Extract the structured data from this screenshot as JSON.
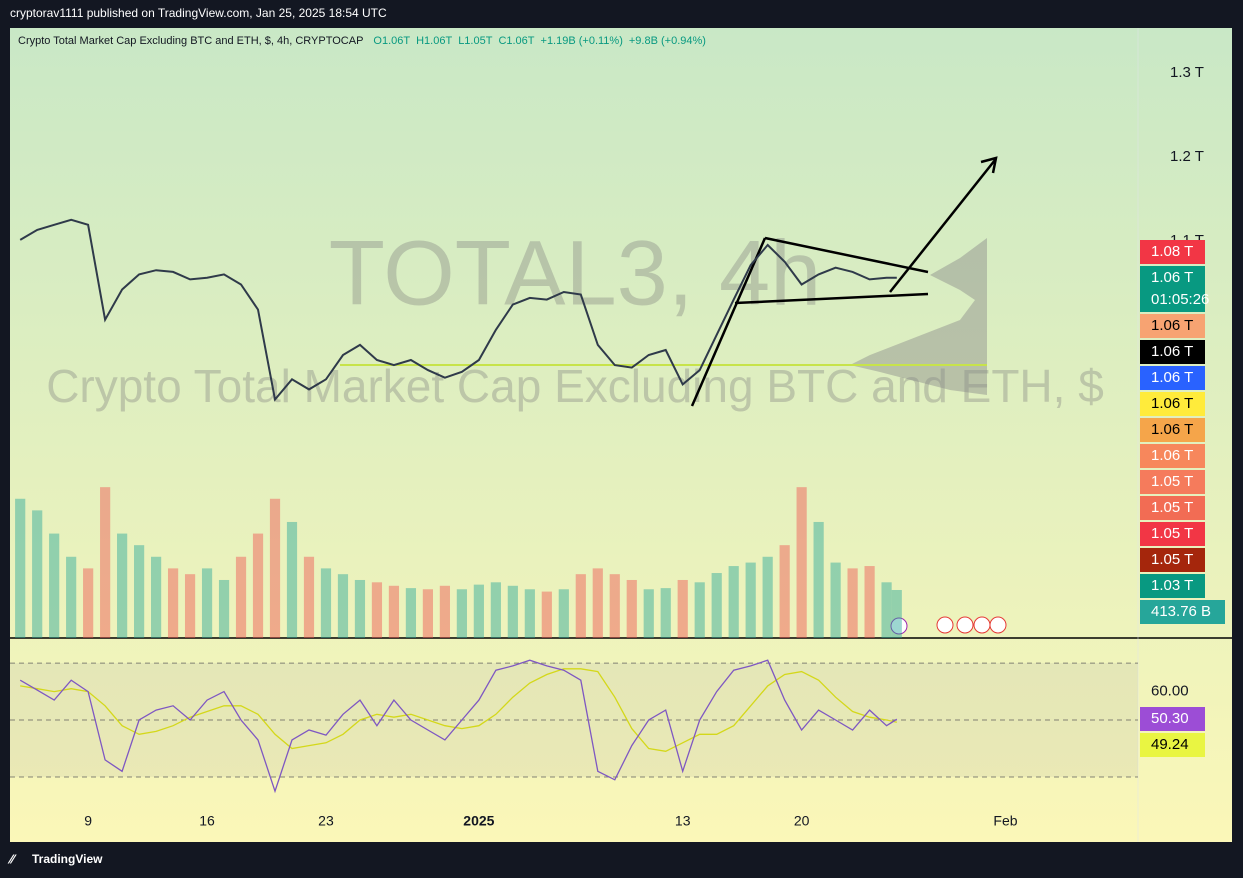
{
  "header": "cryptorav1111 published on TradingView.com, Jan 25, 2025 18:54 UTC",
  "footer": "TradingView",
  "chart_data": [
    {
      "type": "line",
      "title": "Crypto Total Market Cap Excluding BTC and ETH, $, 4h, CRYPTOCAP",
      "ohlc": [
        "O1.06T",
        "H1.06T",
        "L1.05T",
        "C1.06T",
        "+1.19B (+0.11%)",
        "+9.8B (+0.94%)"
      ],
      "watermark": "TOTAL3, 4h",
      "watermark_subtitle": "Crypto Total Market Cap Excluding BTC and ETH, $",
      "x": [
        4,
        5,
        6,
        7,
        8,
        9,
        10,
        11,
        12,
        13,
        14,
        15,
        16,
        17,
        18,
        19,
        20,
        21,
        22,
        23,
        24,
        25,
        26,
        27,
        28,
        29,
        30,
        31,
        32,
        33,
        34,
        35,
        36,
        37,
        38,
        39,
        40,
        41,
        42,
        43,
        44,
        45,
        46,
        47,
        48,
        49,
        50,
        51,
        52,
        53,
        54,
        55,
        55.6
      ],
      "series": [
        {
          "name": "TOTAL3",
          "color": "#2f3a4a",
          "values": [
            1.101,
            1.113,
            1.119,
            1.125,
            1.119,
            1.006,
            1.042,
            1.06,
            1.065,
            1.063,
            1.054,
            1.056,
            1.06,
            1.048,
            1.018,
            0.911,
            0.935,
            0.923,
            0.935,
            0.964,
            0.976,
            0.958,
            0.952,
            0.958,
            0.946,
            0.937,
            0.944,
            0.958,
            0.994,
            1.024,
            1.032,
            1.03,
            1.039,
            1.036,
            0.976,
            0.952,
            0.949,
            0.964,
            0.97,
            0.929,
            0.946,
            0.988,
            1.03,
            1.071,
            1.095,
            1.075,
            1.048,
            1.06,
            1.068,
            1.063,
            1.054,
            1.056,
            1.056
          ]
        }
      ],
      "xlim": [
        3.4,
        69.8
      ],
      "xticks": [
        {
          "value": 8,
          "label": "9"
        },
        {
          "value": 15,
          "label": "16"
        },
        {
          "value": 22,
          "label": "23"
        },
        {
          "value": 31,
          "label": "2025"
        },
        {
          "value": 43,
          "label": "13"
        },
        {
          "value": 50,
          "label": "20"
        },
        {
          "value": 62,
          "label": "Feb"
        }
      ],
      "ylim": [
        0.627,
        1.351
      ],
      "yticks": [
        {
          "value": 1.1,
          "label": "1.1 T"
        },
        {
          "value": 1.2,
          "label": "1.2 T"
        },
        {
          "value": 1.3,
          "label": "1.3 T"
        }
      ],
      "countdown": "01:05:26",
      "price_labels": [
        {
          "label": "1.08 T",
          "color": "#f23645",
          "text_color": "#ffffff"
        },
        {
          "label": "1.06 T",
          "color": "#089981",
          "text_color": "#ffffff"
        },
        {
          "label": "1.06 T",
          "color": "#f7a372",
          "text_color": "#000000"
        },
        {
          "label": "1.06 T",
          "color": "#000000",
          "text_color": "#ffffff"
        },
        {
          "label": "1.06 T",
          "color": "#2962ff",
          "text_color": "#ffffff"
        },
        {
          "label": "1.06 T",
          "color": "#ffeb3b",
          "text_color": "#000000"
        },
        {
          "label": "1.06 T",
          "color": "#f5a54a",
          "text_color": "#000000"
        },
        {
          "label": "1.06 T",
          "color": "#f7875c",
          "text_color": "#ffffff"
        },
        {
          "label": "1.05 T",
          "color": "#f57b5c",
          "text_color": "#ffffff"
        },
        {
          "label": "1.05 T",
          "color": "#f26c54",
          "text_color": "#ffffff"
        },
        {
          "label": "1.05 T",
          "color": "#f23645",
          "text_color": "#ffffff"
        },
        {
          "label": "1.05 T",
          "color": "#a5260c",
          "text_color": "#ffffff"
        },
        {
          "label": "1.03 T",
          "color": "#089981",
          "text_color": "#ffffff"
        }
      ]
    },
    {
      "type": "bar",
      "name": "Volume",
      "up_color": "#26a69a",
      "down_color": "#ef5350",
      "label_color": "#26a69a",
      "ylim": [
        0,
        5240
      ],
      "values": [
        1200,
        1100,
        900,
        700,
        600,
        1300,
        900,
        800,
        700,
        600,
        550,
        600,
        500,
        700,
        900,
        1200,
        1000,
        700,
        600,
        550,
        500,
        480,
        450,
        430,
        420,
        450,
        420,
        460,
        480,
        450,
        420,
        400,
        420,
        550,
        600,
        550,
        500,
        420,
        430,
        500,
        480,
        560,
        620,
        650,
        700,
        800,
        1300,
        1000,
        650,
        600,
        620,
        480,
        413.76
      ],
      "value_labels": [
        null,
        null,
        null,
        null,
        null,
        null,
        null,
        null,
        null,
        null,
        null,
        null,
        null,
        null,
        null,
        null,
        null,
        null,
        null,
        null,
        null,
        null,
        null,
        null,
        null,
        null,
        null,
        null,
        null,
        null,
        null,
        null,
        null,
        null,
        null,
        null,
        null,
        null,
        null,
        null,
        null,
        null,
        null,
        null,
        null,
        null,
        null,
        null,
        null,
        null,
        null,
        null,
        "413.76 B"
      ]
    },
    {
      "type": "line",
      "name": "RSI",
      "ylim": [
        21.9,
        74.6
      ],
      "yticks": [
        {
          "value": 60,
          "label": "60.00"
        }
      ],
      "hlines": [
        70,
        50,
        30
      ],
      "series": [
        {
          "name": "RSI",
          "color": "#7e57c2",
          "values": [
            64,
            60.5,
            57,
            64,
            60,
            36,
            32,
            50,
            53.5,
            55,
            50,
            57,
            60,
            50,
            43,
            25,
            43,
            46.5,
            44.7,
            52,
            57,
            48,
            57,
            50,
            46.5,
            43,
            50,
            57,
            67.5,
            69,
            71,
            69,
            67.5,
            64,
            32,
            29,
            41,
            50,
            53.5,
            32,
            50,
            60,
            67.5,
            69,
            71,
            57,
            46.5,
            53.5,
            50,
            46.5,
            53.5,
            48,
            50.3
          ],
          "value_label": "50.30",
          "label_color": "#9c4dd6",
          "label_text": "#ffffff"
        },
        {
          "name": "RSI-based MA",
          "color": "#d4d81a",
          "values": [
            62,
            61,
            60,
            61,
            60,
            55,
            48,
            45,
            46,
            48,
            51,
            53,
            55,
            55,
            52,
            45,
            40,
            41,
            42,
            45,
            50,
            52,
            51,
            52,
            50,
            48,
            47,
            48,
            52,
            58,
            63,
            66,
            68,
            68,
            67,
            58,
            47,
            40,
            39,
            42,
            45,
            45,
            48,
            55,
            62,
            66,
            67,
            64,
            58,
            53,
            51,
            50,
            49.24
          ],
          "value_label": "49.24",
          "label_color": "#e9f542",
          "label_text": "#000000"
        }
      ]
    }
  ]
}
